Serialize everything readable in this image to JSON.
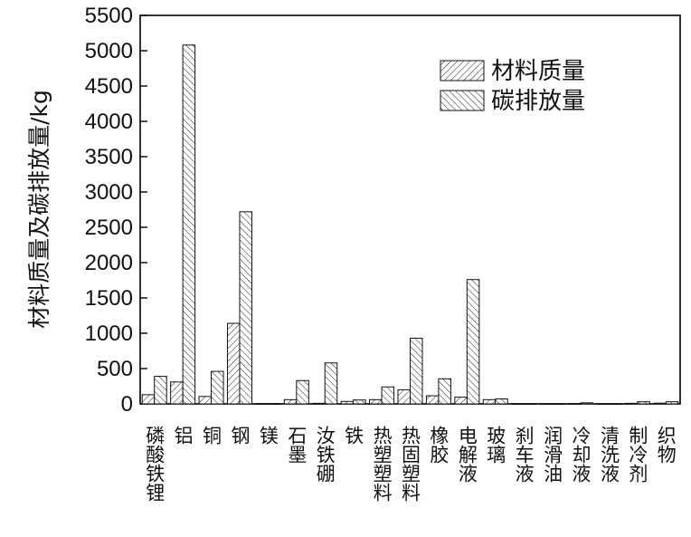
{
  "chart_data": {
    "type": "bar",
    "title": "",
    "xlabel": "",
    "ylabel": "材料质量及碳排放量/kg",
    "ylim": [
      0,
      5500
    ],
    "yticks": [
      0,
      500,
      1000,
      1500,
      2000,
      2500,
      3000,
      3500,
      4000,
      4500,
      5000,
      5500
    ],
    "legend_position": "top-right",
    "grid": false,
    "categories": [
      "磷酸铁锂",
      "铝",
      "铜",
      "钢",
      "镁",
      "石墨",
      "汝铁硼",
      "铁",
      "热塑塑料",
      "热固塑料",
      "橡胶",
      "电解液",
      "玻璃",
      "刹车液",
      "润滑油",
      "冷却液",
      "清洗液",
      "制冷剂",
      "织物"
    ],
    "series": [
      {
        "name": "材料质量",
        "hatch": "forward-diagonal",
        "values": [
          130,
          310,
          105,
          1140,
          5,
          60,
          8,
          35,
          60,
          200,
          115,
          95,
          60,
          3,
          3,
          5,
          3,
          8,
          10
        ]
      },
      {
        "name": "碳排放量",
        "hatch": "back-diagonal",
        "values": [
          390,
          5080,
          460,
          2720,
          5,
          330,
          580,
          55,
          240,
          930,
          355,
          1760,
          70,
          3,
          3,
          15,
          3,
          30,
          30
        ]
      }
    ]
  }
}
